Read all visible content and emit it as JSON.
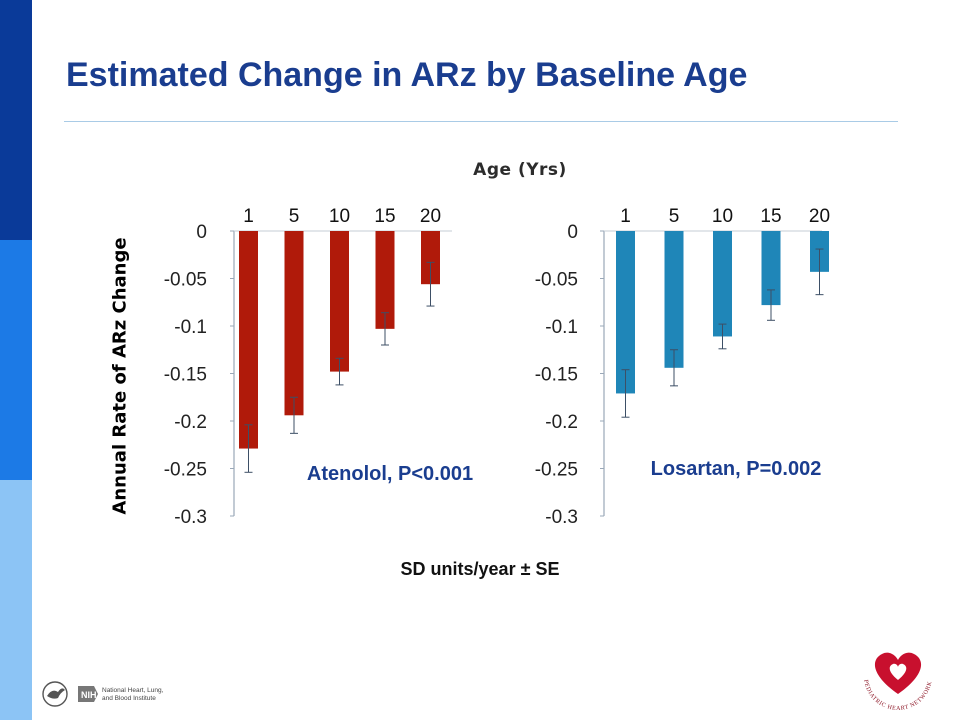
{
  "slide": {
    "title": "Estimated Change in ARz by Baseline Age",
    "x_axis_title": "Age (Yrs)",
    "y_axis_title": "Annual Rate of ARz Change",
    "units_note": "SD units/year ± SE"
  },
  "logos": {
    "nih_text": "National Heart, Lung, and Blood Institute",
    "nih_badge": "NIH",
    "network_text": "PEDIATRIC HEART NETWORK"
  },
  "colors": {
    "atenolol": "#b01a0a",
    "losartan": "#1f86b8",
    "band_dark": "#0a3a99",
    "band_mid": "#1c7ae6",
    "band_light": "#8cc4f5",
    "title": "#1a3d8f"
  },
  "chart_data": [
    {
      "type": "bar",
      "label": "Atenolol, P<0.001",
      "categories": [
        "1",
        "5",
        "10",
        "15",
        "20"
      ],
      "values": [
        -0.229,
        -0.194,
        -0.148,
        -0.103,
        -0.056
      ],
      "se": [
        0.025,
        0.019,
        0.014,
        0.017,
        0.023
      ],
      "yticks": [
        "0",
        "-0.05",
        "-0.1",
        "-0.15",
        "-0.2",
        "-0.25",
        "-0.3"
      ],
      "ylim": [
        -0.3,
        0
      ],
      "color": "#b01a0a"
    },
    {
      "type": "bar",
      "label": "Losartan, P=0.002",
      "categories": [
        "1",
        "5",
        "10",
        "15",
        "20"
      ],
      "values": [
        -0.171,
        -0.144,
        -0.111,
        -0.078,
        -0.043
      ],
      "se": [
        0.025,
        0.019,
        0.013,
        0.016,
        0.024
      ],
      "yticks": [
        "0",
        "-0.05",
        "-0.1",
        "-0.15",
        "-0.2",
        "-0.25",
        "-0.3"
      ],
      "ylim": [
        -0.3,
        0
      ],
      "color": "#1f86b8"
    }
  ]
}
